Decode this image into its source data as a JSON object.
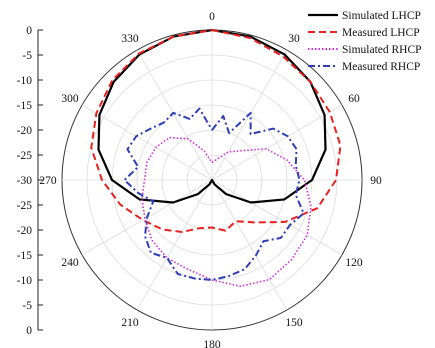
{
  "chart_data": {
    "type": "polar-line",
    "title": "",
    "angle_labels": [
      "0",
      "30",
      "60",
      "90",
      "120",
      "150",
      "180",
      "210",
      "240",
      "270",
      "300",
      "330"
    ],
    "radial_axis": {
      "min": -30,
      "max": 0,
      "ticks_upper": [
        "0",
        "-5",
        "-10",
        "-15",
        "-20",
        "-25",
        "-30"
      ],
      "ticks_lower": [
        "-25",
        "-20",
        "-15",
        "-10",
        "-5",
        "0"
      ]
    },
    "grid": true,
    "legend_position": "top-right",
    "series": [
      {
        "name": "Simulated LHCP",
        "color": "#000000",
        "style": "solid",
        "angles": [
          0,
          15,
          30,
          45,
          60,
          75,
          90,
          105,
          120,
          135,
          150,
          180,
          210,
          225,
          240,
          255,
          270,
          285,
          300,
          315,
          330,
          345,
          360
        ],
        "values": [
          0,
          -0.3,
          -1,
          -2.2,
          -4,
          -6.5,
          -10,
          -15,
          -21,
          -26,
          -29,
          -30,
          -29,
          -26,
          -21,
          -15,
          -10,
          -6.5,
          -4,
          -2.2,
          -1,
          -0.3,
          0
        ]
      },
      {
        "name": "Measured LHCP",
        "color": "#e8211f",
        "style": "dash",
        "angles": [
          0,
          15,
          30,
          45,
          60,
          75,
          90,
          105,
          120,
          135,
          150,
          165,
          180,
          195,
          210,
          225,
          240,
          255,
          270,
          285,
          300,
          315,
          330,
          345,
          360
        ],
        "values": [
          0,
          -0.6,
          -1.5,
          -2.2,
          -2.8,
          -3.4,
          -5.2,
          -8.2,
          -13.2,
          -18,
          -20.5,
          -19.5,
          -20.5,
          -20,
          -18,
          -16,
          -14,
          -11,
          -8,
          -5,
          -3.3,
          -1.8,
          -0.8,
          -0.3,
          0
        ]
      },
      {
        "name": "Simulated RHCP",
        "color": "#d42dd8",
        "style": "dot",
        "angles": [
          0,
          30,
          60,
          75,
          90,
          105,
          120,
          135,
          150,
          165,
          180,
          195,
          210,
          225,
          240,
          255,
          270,
          285,
          300,
          315,
          330,
          345,
          360
        ],
        "values": [
          -26.5,
          -23.5,
          -17.5,
          -14.5,
          -11.5,
          -9.5,
          -8,
          -7.5,
          -7,
          -8,
          -10,
          -11.5,
          -12,
          -13,
          -14.5,
          -15.5,
          -16.5,
          -16.5,
          -17,
          -18,
          -20.5,
          -24,
          -26.5
        ]
      },
      {
        "name": "Measured RHCP",
        "color": "#2d3fb5",
        "style": "dashdot",
        "angles": [
          0,
          10,
          20,
          30,
          40,
          50,
          60,
          70,
          80,
          90,
          100,
          110,
          120,
          130,
          140,
          150,
          160,
          170,
          180,
          190,
          200,
          210,
          220,
          230,
          240,
          250,
          260,
          270,
          280,
          290,
          300,
          310,
          320,
          330,
          340,
          350,
          360
        ],
        "values": [
          -20,
          -17,
          -20,
          -14.5,
          -18,
          -14,
          -12.5,
          -12,
          -13,
          -12.5,
          -13,
          -10.5,
          -12,
          -12,
          -14,
          -12.5,
          -11,
          -10.5,
          -10,
          -10,
          -10,
          -12,
          -11,
          -12.5,
          -15,
          -17.5,
          -15,
          -12.5,
          -15,
          -12,
          -12.5,
          -14,
          -15,
          -14.5,
          -17,
          -15.5,
          -20
        ]
      }
    ]
  }
}
